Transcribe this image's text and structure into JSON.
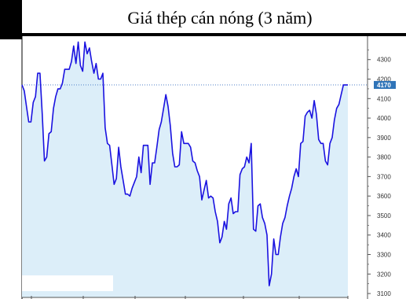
{
  "title": "Giá thép cán nóng (3 năm)",
  "colors": {
    "line": "#1a12e0",
    "area": "#dceef9",
    "axis": "#555555",
    "last_badge": "#2f74b8",
    "ref_line": "#3a6fc0"
  },
  "chart_data": {
    "type": "area",
    "title": "Giá thép cán nóng (3 năm)",
    "xlabel": "",
    "ylabel": "",
    "ylim": [
      3080,
      4420
    ],
    "yticks": [
      3100,
      3200,
      3300,
      3400,
      3500,
      3600,
      3700,
      3800,
      3900,
      4000,
      4100,
      4200,
      4300
    ],
    "last_value": 4170,
    "last_value_label": "4170",
    "grid": false,
    "values": [
      4170,
      4140,
      4060,
      3980,
      3980,
      4080,
      4110,
      4230,
      4230,
      4020,
      3780,
      3800,
      3920,
      3930,
      4050,
      4110,
      4150,
      4150,
      4180,
      4250,
      4250,
      4250,
      4290,
      4370,
      4280,
      4390,
      4270,
      4240,
      4390,
      4330,
      4360,
      4290,
      4230,
      4280,
      4200,
      4200,
      4230,
      3950,
      3870,
      3860,
      3760,
      3660,
      3690,
      3850,
      3750,
      3680,
      3610,
      3610,
      3600,
      3640,
      3670,
      3700,
      3800,
      3720,
      3860,
      3860,
      3860,
      3660,
      3770,
      3770,
      3850,
      3940,
      3980,
      4050,
      4120,
      4060,
      3960,
      3820,
      3750,
      3750,
      3760,
      3930,
      3870,
      3870,
      3870,
      3850,
      3780,
      3770,
      3730,
      3700,
      3580,
      3630,
      3680,
      3590,
      3600,
      3590,
      3520,
      3470,
      3360,
      3390,
      3470,
      3430,
      3560,
      3590,
      3510,
      3520,
      3520,
      3710,
      3740,
      3750,
      3800,
      3770,
      3870,
      3430,
      3420,
      3550,
      3560,
      3490,
      3460,
      3400,
      3140,
      3200,
      3380,
      3300,
      3300,
      3390,
      3460,
      3490,
      3550,
      3600,
      3640,
      3700,
      3740,
      3700,
      3870,
      3880,
      4010,
      4030,
      4040,
      4000,
      4090,
      4020,
      3890,
      3870,
      3870,
      3780,
      3760,
      3870,
      3900,
      3990,
      4050,
      4070,
      4120,
      4170,
      4170,
      4170
    ]
  }
}
